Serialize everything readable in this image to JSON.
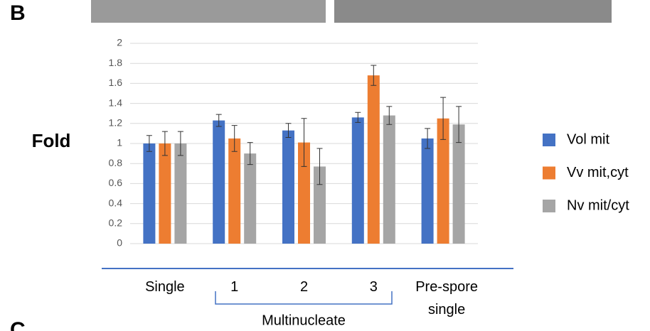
{
  "panel_label": "B",
  "next_panel_label": "C",
  "chart_data": {
    "type": "bar",
    "ylabel": "Fold",
    "group_label": "Multinucleate",
    "categories": [
      "Single",
      "1",
      "2",
      "3",
      "Pre-spore single"
    ],
    "series": [
      {
        "name": "Vol mit",
        "color": "#4472c4",
        "values": [
          1.0,
          1.23,
          1.13,
          1.26,
          1.05
        ],
        "errors": [
          0.08,
          0.06,
          0.07,
          0.05,
          0.1
        ]
      },
      {
        "name": "Vv mit,cyt",
        "color": "#ed7d31",
        "values": [
          1.0,
          1.05,
          1.01,
          1.68,
          1.25
        ],
        "errors": [
          0.12,
          0.13,
          0.24,
          0.1,
          0.21
        ]
      },
      {
        "name": "Nv mit/cyt",
        "color": "#a5a5a5",
        "values": [
          1.0,
          0.9,
          0.77,
          1.28,
          1.19
        ],
        "errors": [
          0.12,
          0.11,
          0.18,
          0.09,
          0.18
        ]
      }
    ],
    "ylim": [
      0,
      2
    ],
    "yticks": [
      0,
      0.2,
      0.4,
      0.6,
      0.8,
      1,
      1.2,
      1.4,
      1.6,
      1.8,
      2
    ],
    "grid": true
  }
}
